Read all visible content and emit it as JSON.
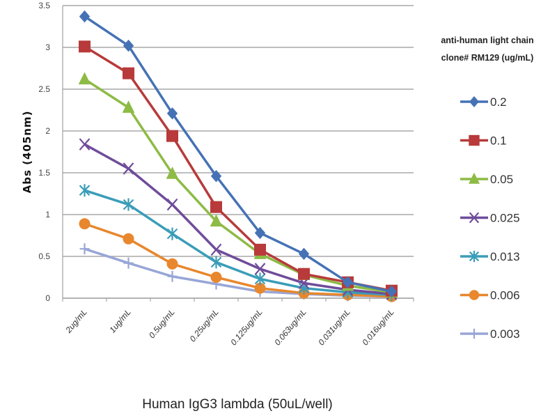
{
  "chart_data": {
    "type": "line",
    "title": "",
    "xlabel": "Human IgG3 lambda (50uL/well)",
    "ylabel": "Abs (405nm)",
    "ylim": [
      0,
      3.5
    ],
    "yticks": [
      "0",
      "0.5",
      "1",
      "1.5",
      "2",
      "2.5",
      "3",
      "3.5"
    ],
    "ytick_values": [
      0,
      0.5,
      1,
      1.5,
      2,
      2.5,
      3,
      3.5
    ],
    "grid": "horizontal",
    "categories": [
      "2ug/mL",
      "1ug/mL",
      "0.5ug/mL",
      "0.25ug/mL",
      "0.125ug/mL",
      "0.063ug/mL",
      "0.031ug/mL",
      "0.016ug/mL"
    ],
    "legend": {
      "title_line1": "anti-human light chain",
      "title_line2": "clone# RM129 (ug/mL)",
      "placement": "right"
    },
    "series": [
      {
        "name": "0.2",
        "color": "#4572B5",
        "marker": "diamond",
        "values": [
          3.37,
          3.02,
          2.21,
          1.46,
          0.78,
          0.53,
          0.19,
          0.08
        ]
      },
      {
        "name": "0.1",
        "color": "#B83A3A",
        "marker": "square",
        "values": [
          3.01,
          2.69,
          1.94,
          1.09,
          0.58,
          0.29,
          0.19,
          0.09
        ]
      },
      {
        "name": "0.05",
        "color": "#8DBB45",
        "marker": "triangle",
        "values": [
          2.62,
          2.28,
          1.49,
          0.92,
          0.53,
          0.28,
          0.15,
          0.07
        ]
      },
      {
        "name": "0.025",
        "color": "#6F4C9A",
        "marker": "x",
        "values": [
          1.84,
          1.55,
          1.12,
          0.58,
          0.35,
          0.18,
          0.1,
          0.05
        ]
      },
      {
        "name": "0.013",
        "color": "#3A9DB8",
        "marker": "star",
        "values": [
          1.29,
          1.12,
          0.77,
          0.43,
          0.23,
          0.12,
          0.07,
          0.04
        ]
      },
      {
        "name": "0.006",
        "color": "#E8872E",
        "marker": "circle",
        "values": [
          0.89,
          0.71,
          0.41,
          0.25,
          0.12,
          0.06,
          0.04,
          0.02
        ]
      },
      {
        "name": "0.003",
        "color": "#98A6D6",
        "marker": "plus",
        "values": [
          0.59,
          0.42,
          0.26,
          0.17,
          0.08,
          0.05,
          0.03,
          0.02
        ]
      }
    ]
  }
}
